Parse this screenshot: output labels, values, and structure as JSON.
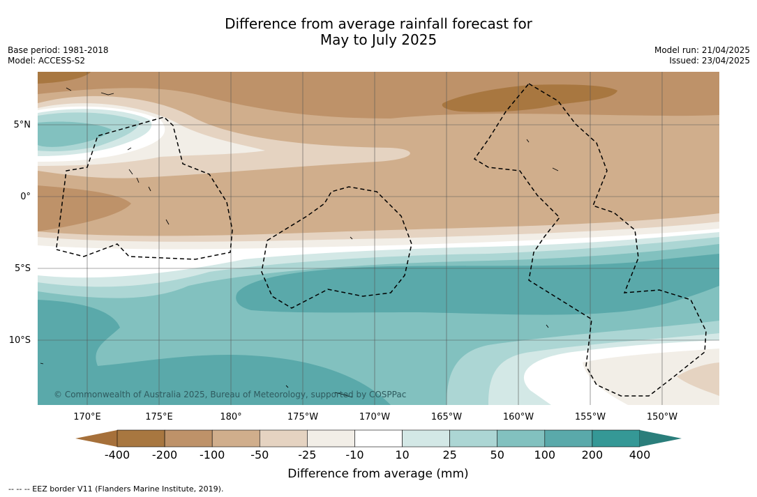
{
  "title_line1": "Difference from average rainfall forecast for",
  "title_line2": "May to July 2025",
  "info_left": {
    "base_period": "Base period: 1981-2018",
    "model": "Model: ACCESS-S2"
  },
  "info_right": {
    "model_run": "Model run: 21/04/2025",
    "issued": "Issued: 23/04/2025"
  },
  "lat_ticks": [
    "5°N",
    "0°",
    "5°S",
    "10°S"
  ],
  "lon_ticks": [
    "170°E",
    "175°E",
    "180°",
    "175°W",
    "170°W",
    "165°W",
    "160°W",
    "155°W",
    "150°W"
  ],
  "copyright": "© Commonwealth of Australia 2025, Bureau of Meteorology, supported by COSPPac",
  "colorbar": {
    "title": "Difference from average (mm)",
    "labels": [
      "-400",
      "-200",
      "-100",
      "-50",
      "-25",
      "-10",
      "10",
      "25",
      "50",
      "100",
      "200",
      "400"
    ],
    "colors": [
      "#a6703a",
      "#a87740",
      "#be9269",
      "#d0ae8c",
      "#e5d3c1",
      "#f2eee7",
      "#ffffff",
      "#d3e8e6",
      "#acd6d4",
      "#82c1bf",
      "#5aa9aa",
      "#359896",
      "#2a7e7b"
    ]
  },
  "footer": "--  --  -- EEZ border V11 (Flanders Marine Institute, 2019)."
}
